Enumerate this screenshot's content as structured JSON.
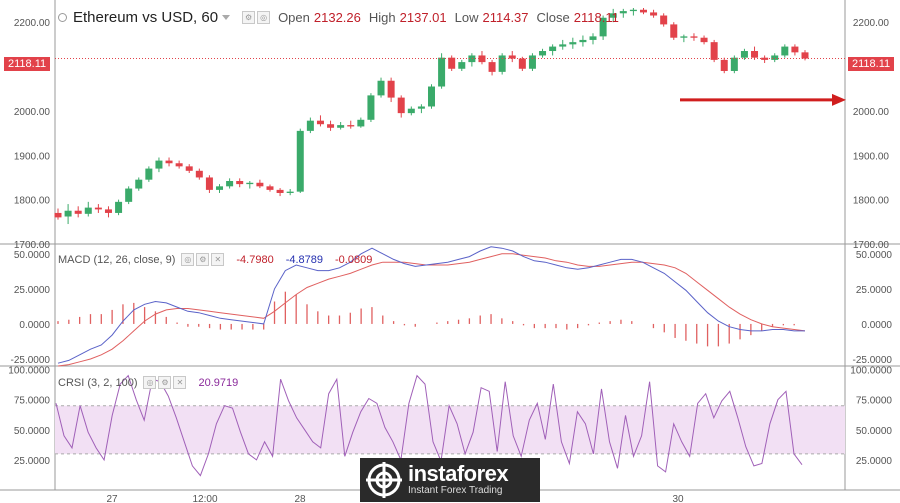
{
  "header": {
    "symbol": "Ethereum vs USD, 60",
    "open_label": "Open",
    "open_value": "2132.26",
    "high_label": "High",
    "high_value": "2137.01",
    "low_label": "Low",
    "low_value": "2114.37",
    "close_label": "Close",
    "close_value": "2118.11"
  },
  "current_price_tag": "2118.11",
  "macd": {
    "label": "MACD (12, 26, close, 9)",
    "v1": "-4.7980",
    "v2": "-4.8789",
    "v3": "-0.0809"
  },
  "crsi": {
    "label": "CRSI (3, 2, 100)",
    "value": "20.9719"
  },
  "price_axis": [
    "2200.00",
    "2100.00",
    "2000.00",
    "1900.00",
    "1800.00",
    "1700.00"
  ],
  "macd_axis": [
    "50.0000",
    "25.0000",
    "0.0000",
    "-25.0000"
  ],
  "crsi_axis": [
    "100.0000",
    "75.0000",
    "50.0000",
    "25.0000"
  ],
  "time_axis": [
    "27",
    "12:00",
    "28",
    "30"
  ],
  "logo": {
    "name": "instaforex",
    "tagline": "Instant Forex Trading"
  },
  "colors": {
    "up": "#3aaa6a",
    "down": "#e2424a",
    "macd_line": "#5a62c8",
    "signal_line": "#e06060",
    "crsi_line": "#a060b8",
    "crsi_band": "#f2e0f4",
    "arrow": "#d01e1e"
  },
  "chart_data": [
    {
      "type": "candlestick",
      "title": "Ethereum vs USD, 60",
      "ylim": [
        1700,
        2250
      ],
      "close_last": 2118.11,
      "ohlc": [
        [
          1770,
          1780,
          1755,
          1760
        ],
        [
          1762,
          1790,
          1745,
          1775
        ],
        [
          1775,
          1785,
          1760,
          1768
        ],
        [
          1768,
          1795,
          1762,
          1782
        ],
        [
          1782,
          1790,
          1770,
          1778
        ],
        [
          1778,
          1785,
          1760,
          1770
        ],
        [
          1770,
          1800,
          1765,
          1795
        ],
        [
          1795,
          1830,
          1790,
          1825
        ],
        [
          1825,
          1850,
          1820,
          1845
        ],
        [
          1845,
          1875,
          1840,
          1870
        ],
        [
          1870,
          1895,
          1862,
          1888
        ],
        [
          1888,
          1895,
          1875,
          1882
        ],
        [
          1882,
          1888,
          1870,
          1875
        ],
        [
          1875,
          1880,
          1860,
          1865
        ],
        [
          1865,
          1870,
          1845,
          1850
        ],
        [
          1850,
          1855,
          1815,
          1822
        ],
        [
          1822,
          1835,
          1815,
          1830
        ],
        [
          1830,
          1848,
          1825,
          1842
        ],
        [
          1842,
          1848,
          1828,
          1835
        ],
        [
          1835,
          1842,
          1825,
          1838
        ],
        [
          1838,
          1845,
          1826,
          1830
        ],
        [
          1830,
          1834,
          1818,
          1822
        ],
        [
          1822,
          1826,
          1808,
          1815
        ],
        [
          1815,
          1824,
          1810,
          1818
        ],
        [
          1818,
          1960,
          1815,
          1955
        ],
        [
          1955,
          1985,
          1950,
          1978
        ],
        [
          1978,
          1990,
          1965,
          1970
        ],
        [
          1970,
          1978,
          1955,
          1962
        ],
        [
          1962,
          1975,
          1958,
          1968
        ],
        [
          1968,
          1978,
          1960,
          1965
        ],
        [
          1965,
          1985,
          1962,
          1980
        ],
        [
          1980,
          2040,
          1975,
          2035
        ],
        [
          2035,
          2075,
          2030,
          2068
        ],
        [
          2068,
          2075,
          2020,
          2030
        ],
        [
          2030,
          2035,
          1985,
          1995
        ],
        [
          1995,
          2010,
          1990,
          2005
        ],
        [
          2005,
          2015,
          1995,
          2010
        ],
        [
          2010,
          2060,
          2005,
          2055
        ],
        [
          2055,
          2130,
          2050,
          2120
        ],
        [
          2120,
          2125,
          2090,
          2095
        ],
        [
          2095,
          2115,
          2090,
          2110
        ],
        [
          2110,
          2130,
          2100,
          2125
        ],
        [
          2125,
          2135,
          2105,
          2110
        ],
        [
          2110,
          2115,
          2080,
          2088
        ],
        [
          2088,
          2130,
          2082,
          2125
        ],
        [
          2125,
          2135,
          2110,
          2118
        ],
        [
          2118,
          2122,
          2090,
          2095
        ],
        [
          2095,
          2130,
          2090,
          2125
        ],
        [
          2125,
          2140,
          2120,
          2135
        ],
        [
          2135,
          2150,
          2125,
          2145
        ],
        [
          2145,
          2160,
          2138,
          2150
        ],
        [
          2150,
          2165,
          2140,
          2155
        ],
        [
          2155,
          2170,
          2145,
          2160
        ],
        [
          2160,
          2175,
          2150,
          2168
        ],
        [
          2168,
          2215,
          2160,
          2210
        ],
        [
          2210,
          2230,
          2200,
          2220
        ],
        [
          2220,
          2230,
          2210,
          2225
        ],
        [
          2225,
          2232,
          2215,
          2228
        ],
        [
          2228,
          2232,
          2218,
          2222
        ],
        [
          2222,
          2228,
          2210,
          2215
        ],
        [
          2215,
          2220,
          2190,
          2195
        ],
        [
          2195,
          2200,
          2160,
          2165
        ],
        [
          2165,
          2172,
          2155,
          2168
        ],
        [
          2168,
          2175,
          2158,
          2165
        ],
        [
          2165,
          2170,
          2150,
          2155
        ],
        [
          2155,
          2160,
          2110,
          2115
        ],
        [
          2115,
          2120,
          2085,
          2090
        ],
        [
          2090,
          2125,
          2085,
          2120
        ],
        [
          2120,
          2140,
          2115,
          2135
        ],
        [
          2135,
          2145,
          2115,
          2120
        ],
        [
          2120,
          2125,
          2108,
          2115
        ],
        [
          2115,
          2130,
          2110,
          2125
        ],
        [
          2125,
          2150,
          2120,
          2145
        ],
        [
          2145,
          2150,
          2125,
          2132
        ],
        [
          2132,
          2137,
          2114,
          2118
        ]
      ]
    },
    {
      "type": "line",
      "title": "MACD (12, 26, close, 9)",
      "ylim": [
        -30,
        57
      ],
      "series": [
        {
          "name": "MACD",
          "values": [
            -28,
            -26,
            -22,
            -18,
            -15,
            -8,
            2,
            10,
            14,
            16,
            15,
            12,
            9,
            8,
            6,
            4,
            3,
            2,
            1,
            0,
            25,
            38,
            42,
            40,
            38,
            38,
            40,
            44,
            50,
            54,
            50,
            46,
            43,
            41,
            42,
            43,
            44,
            46,
            48,
            52,
            55,
            54,
            52,
            48,
            45,
            44,
            42,
            40,
            39,
            40,
            42,
            44,
            46,
            46,
            44,
            40,
            36,
            30,
            24,
            16,
            8,
            2,
            -2,
            -4,
            -5,
            -5,
            -4,
            -4,
            -5,
            -5
          ]
        },
        {
          "name": "Signal",
          "values": [
            -30,
            -29,
            -27,
            -25,
            -22,
            -18,
            -12,
            -5,
            2,
            7,
            10,
            11,
            11,
            10,
            9,
            8,
            7,
            6,
            5,
            4,
            9,
            15,
            21,
            26,
            29,
            32,
            34,
            36,
            39,
            42,
            44,
            44,
            44,
            43,
            42,
            42,
            42,
            43,
            44,
            46,
            48,
            50,
            50,
            49,
            48,
            47,
            45,
            44,
            42,
            41,
            41,
            42,
            43,
            44,
            44,
            43,
            42,
            40,
            36,
            30,
            24,
            18,
            12,
            7,
            3,
            0,
            -2,
            -3,
            -4,
            -5
          ]
        },
        {
          "name": "Histogram",
          "values": [
            2,
            3,
            5,
            7,
            7,
            10,
            14,
            15,
            12,
            9,
            5,
            1,
            -2,
            -2,
            -3,
            -4,
            -4,
            -4,
            -4,
            -4,
            16,
            23,
            21,
            14,
            9,
            6,
            6,
            8,
            11,
            12,
            6,
            2,
            -1,
            -2,
            0,
            1,
            2,
            3,
            4,
            6,
            7,
            4,
            2,
            -1,
            -3,
            -3,
            -3,
            -4,
            -3,
            -1,
            1,
            2,
            3,
            2,
            0,
            -3,
            -6,
            -10,
            -12,
            -14,
            -16,
            -16,
            -14,
            -11,
            -8,
            -5,
            -2,
            -1,
            -1,
            0
          ]
        }
      ]
    },
    {
      "type": "line",
      "title": "CRSI (3, 2, 100)",
      "ylim": [
        0,
        100
      ],
      "bands": [
        30,
        70
      ],
      "series": [
        {
          "name": "CRSI",
          "values": [
            72,
            45,
            35,
            70,
            48,
            35,
            25,
            62,
            88,
            95,
            75,
            58,
            92,
            90,
            78,
            60,
            40,
            20,
            12,
            30,
            55,
            70,
            68,
            48,
            30,
            25,
            40,
            28,
            92,
            74,
            60,
            50,
            40,
            35,
            80,
            92,
            28,
            48,
            65,
            76,
            72,
            52,
            40,
            25,
            72,
            95,
            88,
            40,
            24,
            70,
            55,
            30,
            48,
            85,
            82,
            32,
            90,
            45,
            28,
            58,
            72,
            42,
            88,
            40,
            22,
            65,
            55,
            30,
            84,
            40,
            18,
            62,
            28,
            45,
            90,
            20,
            15,
            55,
            40,
            28,
            72,
            80,
            60,
            74,
            82,
            60,
            36,
            20,
            22,
            55,
            75,
            82,
            30,
            21
          ]
        }
      ]
    }
  ]
}
